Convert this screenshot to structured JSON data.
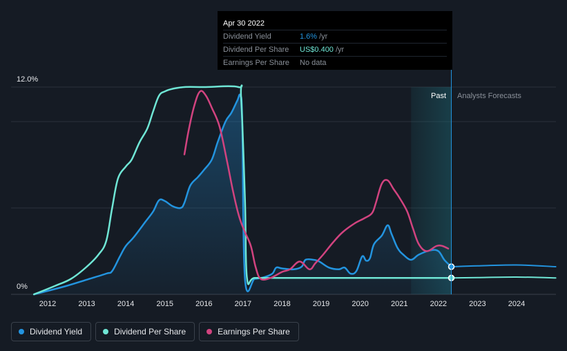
{
  "tooltip": {
    "date": "Apr 30 2022",
    "rows": [
      {
        "label": "Dividend Yield",
        "value": "1.6%",
        "unit": "/yr",
        "color": "#2394df"
      },
      {
        "label": "Dividend Per Share",
        "value": "US$0.400",
        "unit": "/yr",
        "color": "#6fe6d5"
      },
      {
        "label": "Earnings Per Share",
        "value": "No data",
        "unit": "",
        "color": "#8a9099"
      }
    ]
  },
  "legend": [
    {
      "label": "Dividend Yield",
      "color": "#2394df"
    },
    {
      "label": "Dividend Per Share",
      "color": "#6fe6d5"
    },
    {
      "label": "Earnings Per Share",
      "color": "#d1437f"
    }
  ],
  "chart_data": {
    "type": "line",
    "y_axis_labels": [
      "12.0%",
      "0%"
    ],
    "ylim": [
      0,
      12
    ],
    "xlim": [
      2011.4,
      2025.0
    ],
    "x_ticks": [
      2012,
      2013,
      2014,
      2015,
      2016,
      2017,
      2018,
      2019,
      2020,
      2021,
      2022,
      2023,
      2024
    ],
    "past_label": "Past",
    "forecast_label": "Analysts Forecasts",
    "past_region": [
      2021.3,
      2022.33
    ],
    "grid": true,
    "colors": {
      "yield": "#2394df",
      "dps": "#6fe6d5",
      "eps": "#d1437f"
    },
    "series": [
      {
        "name": "Dividend Yield",
        "key": "yield",
        "points": [
          [
            2011.65,
            0
          ],
          [
            2012.0,
            0.2
          ],
          [
            2012.5,
            0.5
          ],
          [
            2013.0,
            0.85
          ],
          [
            2013.5,
            1.2
          ],
          [
            2013.65,
            1.35
          ],
          [
            2013.85,
            2.2
          ],
          [
            2014.0,
            2.8
          ],
          [
            2014.2,
            3.3
          ],
          [
            2014.5,
            4.2
          ],
          [
            2014.7,
            4.8
          ],
          [
            2014.85,
            5.45
          ],
          [
            2015.0,
            5.4
          ],
          [
            2015.2,
            5.1
          ],
          [
            2015.4,
            5.0
          ],
          [
            2015.5,
            5.3
          ],
          [
            2015.65,
            6.3
          ],
          [
            2015.85,
            6.8
          ],
          [
            2016.0,
            7.2
          ],
          [
            2016.2,
            7.8
          ],
          [
            2016.35,
            8.8
          ],
          [
            2016.55,
            10.0
          ],
          [
            2016.7,
            10.5
          ],
          [
            2016.85,
            11.2
          ],
          [
            2016.93,
            11.5
          ],
          [
            2016.98,
            10.0
          ],
          [
            2017.05,
            0.9
          ],
          [
            2017.3,
            0.9
          ],
          [
            2017.55,
            1.0
          ],
          [
            2017.75,
            1.2
          ],
          [
            2017.85,
            1.55
          ],
          [
            2018.0,
            1.5
          ],
          [
            2018.3,
            1.45
          ],
          [
            2018.5,
            1.6
          ],
          [
            2018.6,
            2.0
          ],
          [
            2018.8,
            2.0
          ],
          [
            2018.95,
            1.9
          ],
          [
            2019.2,
            1.55
          ],
          [
            2019.45,
            1.45
          ],
          [
            2019.6,
            1.55
          ],
          [
            2019.75,
            1.2
          ],
          [
            2019.9,
            1.35
          ],
          [
            2020.05,
            2.2
          ],
          [
            2020.15,
            1.95
          ],
          [
            2020.25,
            2.1
          ],
          [
            2020.35,
            2.9
          ],
          [
            2020.55,
            3.4
          ],
          [
            2020.7,
            4.0
          ],
          [
            2020.8,
            3.5
          ],
          [
            2020.95,
            2.7
          ],
          [
            2021.1,
            2.3
          ],
          [
            2021.3,
            2.0
          ],
          [
            2021.5,
            2.3
          ],
          [
            2021.8,
            2.55
          ],
          [
            2022.0,
            2.5
          ],
          [
            2022.15,
            2.0
          ],
          [
            2022.33,
            1.6
          ]
        ]
      },
      {
        "name": "Dividend Per Share",
        "key": "dps",
        "points": [
          [
            2011.65,
            0
          ],
          [
            2012.2,
            0.5
          ],
          [
            2012.6,
            0.9
          ],
          [
            2013.0,
            1.6
          ],
          [
            2013.3,
            2.3
          ],
          [
            2013.5,
            3.1
          ],
          [
            2013.65,
            5.0
          ],
          [
            2013.8,
            6.7
          ],
          [
            2014.0,
            7.4
          ],
          [
            2014.15,
            7.8
          ],
          [
            2014.35,
            8.8
          ],
          [
            2014.55,
            9.6
          ],
          [
            2014.7,
            10.6
          ],
          [
            2014.85,
            11.5
          ],
          [
            2015.0,
            11.75
          ],
          [
            2015.2,
            11.9
          ],
          [
            2015.5,
            12.0
          ],
          [
            2016.0,
            12.0
          ],
          [
            2016.88,
            12.0
          ],
          [
            2016.95,
            11.4
          ],
          [
            2017.05,
            5.5
          ],
          [
            2017.1,
            0.95
          ],
          [
            2017.3,
            0.95
          ],
          [
            2018.0,
            0.95
          ],
          [
            2020.0,
            0.95
          ],
          [
            2022.33,
            0.95
          ]
        ]
      },
      {
        "name": "Earnings Per Share",
        "key": "eps",
        "points": [
          [
            2015.5,
            8.1
          ],
          [
            2015.6,
            9.4
          ],
          [
            2015.75,
            10.9
          ],
          [
            2015.9,
            11.75
          ],
          [
            2016.05,
            11.5
          ],
          [
            2016.2,
            10.8
          ],
          [
            2016.4,
            9.7
          ],
          [
            2016.6,
            7.6
          ],
          [
            2016.75,
            5.9
          ],
          [
            2016.9,
            4.5
          ],
          [
            2017.05,
            3.6
          ],
          [
            2017.2,
            2.8
          ],
          [
            2017.32,
            1.6
          ],
          [
            2017.45,
            0.9
          ],
          [
            2017.7,
            0.95
          ],
          [
            2018.0,
            1.3
          ],
          [
            2018.2,
            1.45
          ],
          [
            2018.45,
            1.9
          ],
          [
            2018.7,
            1.45
          ],
          [
            2018.85,
            1.8
          ],
          [
            2019.05,
            2.3
          ],
          [
            2019.3,
            3.0
          ],
          [
            2019.55,
            3.6
          ],
          [
            2019.85,
            4.1
          ],
          [
            2020.1,
            4.4
          ],
          [
            2020.3,
            4.7
          ],
          [
            2020.4,
            5.3
          ],
          [
            2020.55,
            6.4
          ],
          [
            2020.7,
            6.6
          ],
          [
            2020.85,
            6.1
          ],
          [
            2021.0,
            5.6
          ],
          [
            2021.2,
            4.8
          ],
          [
            2021.35,
            3.8
          ],
          [
            2021.5,
            2.9
          ],
          [
            2021.7,
            2.5
          ],
          [
            2021.95,
            2.8
          ],
          [
            2022.1,
            2.8
          ],
          [
            2022.25,
            2.65
          ]
        ]
      },
      {
        "name": "Dividend Yield Forecast",
        "key": "yield",
        "forecast": true,
        "points": [
          [
            2022.33,
            1.6
          ],
          [
            2023.0,
            1.65
          ],
          [
            2024.0,
            1.7
          ],
          [
            2025.0,
            1.6
          ]
        ]
      },
      {
        "name": "Dividend Per Share Forecast",
        "key": "dps",
        "forecast": true,
        "points": [
          [
            2022.33,
            0.95
          ],
          [
            2023.0,
            0.97
          ],
          [
            2024.0,
            1.0
          ],
          [
            2025.0,
            0.95
          ]
        ]
      }
    ]
  }
}
